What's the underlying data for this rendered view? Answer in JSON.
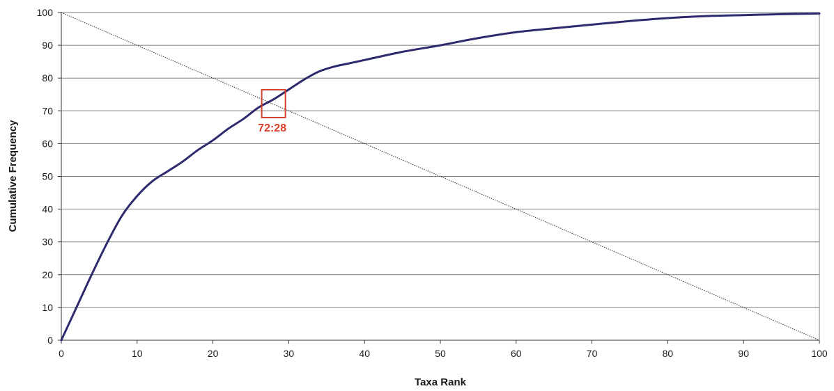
{
  "chart_data": {
    "type": "line",
    "title": "",
    "xlabel": "Taxa Rank",
    "ylabel": "Cumulative Frequency",
    "xlim": [
      0,
      100
    ],
    "ylim": [
      0,
      100
    ],
    "xticks": [
      0,
      10,
      20,
      30,
      40,
      50,
      60,
      70,
      80,
      90,
      100
    ],
    "yticks": [
      0,
      10,
      20,
      30,
      40,
      50,
      60,
      70,
      80,
      90,
      100
    ],
    "grid": "horizontal",
    "legend": "none",
    "series": [
      {
        "style": "solid",
        "color": "#2e2a6e",
        "x": [
          0,
          2,
          4,
          6,
          8,
          10,
          12,
          14,
          16,
          18,
          20,
          22,
          24,
          26,
          28,
          30,
          32,
          34,
          36,
          38,
          40,
          45,
          50,
          55,
          60,
          65,
          70,
          75,
          80,
          85,
          90,
          95,
          100
        ],
        "y": [
          0,
          10,
          20,
          29.5,
          38,
          44,
          48.5,
          51.5,
          54.5,
          58,
          61,
          64.5,
          67.5,
          71,
          73.5,
          76.5,
          79.5,
          82,
          83.5,
          84.5,
          85.5,
          88,
          90,
          92.2,
          94,
          95.2,
          96.3,
          97.4,
          98.3,
          98.9,
          99.2,
          99.5,
          99.7
        ]
      },
      {
        "style": "dotted",
        "color": "#333333",
        "x": [
          0,
          100
        ],
        "y": [
          100,
          0
        ]
      }
    ],
    "annotations": [
      {
        "text": "72:28",
        "x": 28,
        "y": 72.2,
        "color": "#d9402b"
      }
    ]
  }
}
